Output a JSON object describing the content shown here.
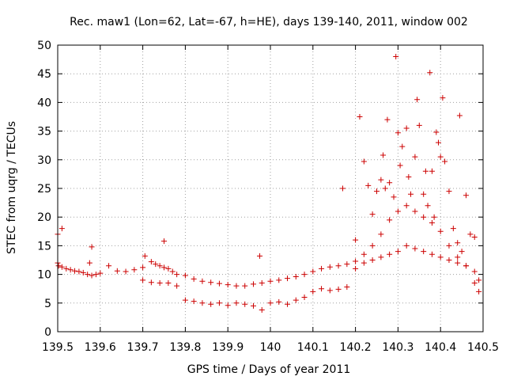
{
  "chart_data": {
    "type": "scatter",
    "title": "Rec. maw1 (Lon=62, Lat=-67, h=HE), days 139-140, 2011, window 002",
    "xlabel": "GPS time / Days of year 2011",
    "ylabel": "STEC from uqrg / TECUs",
    "xlim": [
      139.5,
      140.5
    ],
    "ylim": [
      0,
      50
    ],
    "xticks": [
      "139.5",
      "139.6",
      "139.7",
      "139.8",
      "139.9",
      "140",
      "140.1",
      "140.2",
      "140.3",
      "140.4",
      "140.5"
    ],
    "yticks": [
      "0",
      "5",
      "10",
      "15",
      "20",
      "25",
      "30",
      "35",
      "40",
      "45",
      "50"
    ],
    "grid": true,
    "marker_color": "#cc0000",
    "series": [
      {
        "x": [
          139.5,
          139.502,
          139.51,
          139.52,
          139.53,
          139.54,
          139.55,
          139.56,
          139.57,
          139.575,
          139.58,
          139.59,
          139.6,
          139.62,
          139.64,
          139.66,
          139.68,
          139.7,
          139.705,
          139.72,
          139.73,
          139.74,
          139.75,
          139.76,
          139.77,
          139.78,
          139.8,
          139.82,
          139.84,
          139.86,
          139.88,
          139.9,
          139.92,
          139.94,
          139.96,
          139.98,
          140.0,
          140.02,
          140.04,
          140.06,
          140.08,
          140.1,
          140.12,
          140.14,
          140.16,
          140.18,
          140.2,
          140.22,
          140.24,
          140.26,
          140.28,
          140.3,
          140.32,
          140.34,
          140.36,
          140.38,
          140.4,
          140.42,
          140.44,
          140.46,
          140.48,
          140.49
        ],
        "y": [
          12,
          11.5,
          11.3,
          11,
          10.8,
          10.6,
          10.5,
          10.3,
          10,
          12,
          14.8,
          10,
          10.2,
          11.5,
          10.6,
          10.5,
          10.8,
          11.2,
          13.2,
          12.2,
          11.8,
          11.5,
          11.2,
          11,
          10.5,
          10,
          9.8,
          9.2,
          8.8,
          8.6,
          8.4,
          8.2,
          8,
          8,
          8.3,
          8.5,
          8.8,
          9,
          9.3,
          9.6,
          10,
          10.5,
          11,
          11.3,
          11.5,
          11.8,
          12.3,
          13.5,
          15,
          17,
          19.5,
          21,
          22,
          21,
          20,
          19,
          17.5,
          15,
          13,
          11.5,
          10.5,
          9
        ],
        "name": ""
      },
      {
        "x": [
          139.5,
          139.51,
          139.58,
          139.7,
          139.72,
          139.74,
          139.75,
          139.76,
          139.78,
          139.8,
          139.82,
          139.84,
          139.86,
          139.88,
          139.9,
          139.92,
          139.94,
          139.96,
          139.975,
          139.98,
          140.0,
          140.02,
          140.04,
          140.06,
          140.08,
          140.1,
          140.12,
          140.14,
          140.16,
          140.17,
          140.18,
          140.2,
          140.22,
          140.24,
          140.26,
          140.28,
          140.3,
          140.32,
          140.34,
          140.36,
          140.38,
          140.4,
          140.42,
          140.44,
          140.46,
          140.48,
          140.49
        ],
        "y": [
          17,
          18,
          9.8,
          9,
          8.6,
          8.5,
          15.8,
          8.5,
          8,
          5.5,
          5.3,
          5,
          4.8,
          5,
          4.6,
          5,
          4.8,
          4.5,
          13.2,
          3.8,
          5,
          5.2,
          4.8,
          5.5,
          6,
          7,
          7.5,
          7.2,
          7.4,
          25,
          7.8,
          11,
          12,
          12.5,
          13,
          13.5,
          14,
          15,
          14.5,
          14,
          13.5,
          13,
          12.5,
          12,
          11.5,
          8.5,
          7
        ],
        "name": ""
      },
      {
        "x": [
          140.2,
          140.21,
          140.22,
          140.23,
          140.24,
          140.25,
          140.26,
          140.265,
          140.27,
          140.275,
          140.28,
          140.29,
          140.295,
          140.3,
          140.305,
          140.31,
          140.32,
          140.325,
          140.33,
          140.34,
          140.345,
          140.35,
          140.36,
          140.365,
          140.37,
          140.375,
          140.38,
          140.385,
          140.39,
          140.395,
          140.4,
          140.405,
          140.41,
          140.42,
          140.43,
          140.44,
          140.445,
          140.45,
          140.46,
          140.47,
          140.48
        ],
        "y": [
          16,
          37.5,
          29.7,
          25.5,
          20.5,
          24.5,
          26.5,
          30.8,
          25,
          37,
          26,
          23.5,
          48,
          34.7,
          29,
          32.3,
          35.5,
          27,
          24,
          30.5,
          40.5,
          36,
          24,
          28,
          22,
          45.2,
          28,
          20,
          34.8,
          33,
          30.5,
          40.8,
          29.7,
          24.5,
          18,
          15.5,
          37.7,
          14,
          23.8,
          17,
          16.5
        ],
        "name": ""
      }
    ]
  }
}
